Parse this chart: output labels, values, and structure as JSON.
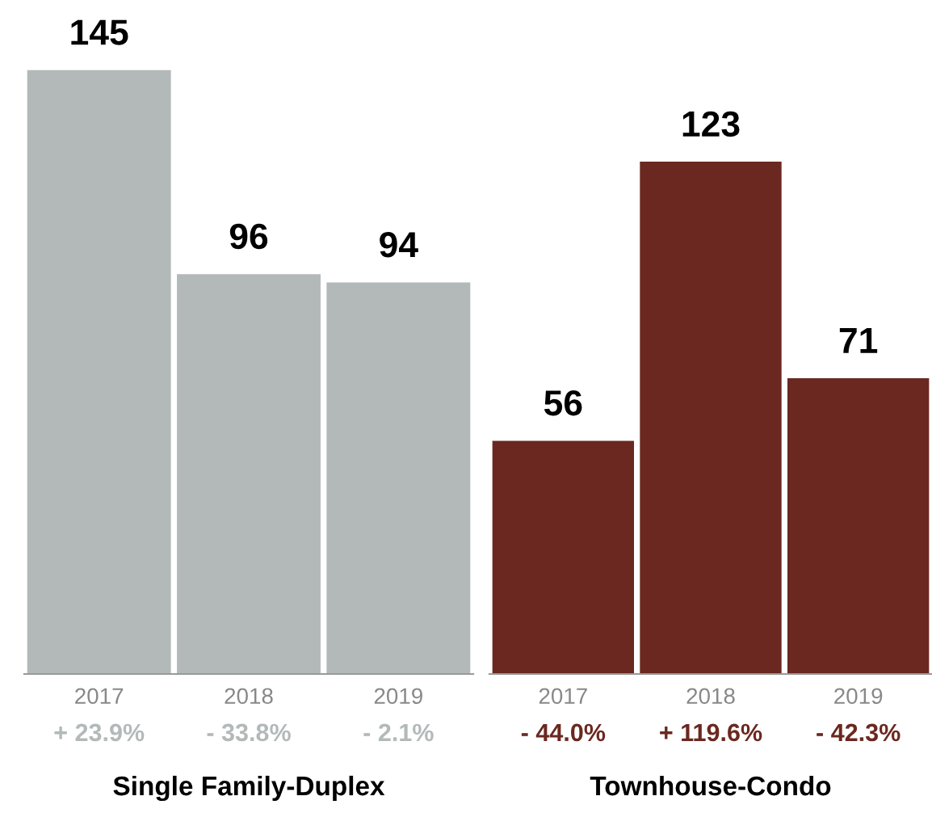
{
  "chart_data": [
    {
      "type": "bar",
      "xlabel": "Single Family-Duplex",
      "categories": [
        "2017",
        "2018",
        "2019"
      ],
      "values": [
        145,
        96,
        94
      ],
      "color": "#b3b9b9",
      "data_labels": true,
      "tick_labels": "x",
      "grid": false,
      "annotations": [
        "+ 23.9%",
        "- 33.8%",
        "- 2.1%"
      ]
    },
    {
      "type": "bar",
      "xlabel": "Townhouse-Condo",
      "categories": [
        "2017",
        "2018",
        "2019"
      ],
      "values": [
        56,
        123,
        71
      ],
      "color": "#6b2820",
      "data_labels": true,
      "tick_labels": "x",
      "grid": false,
      "annotations": [
        "- 44.0%",
        "+ 119.6%",
        "- 42.3%"
      ]
    }
  ]
}
